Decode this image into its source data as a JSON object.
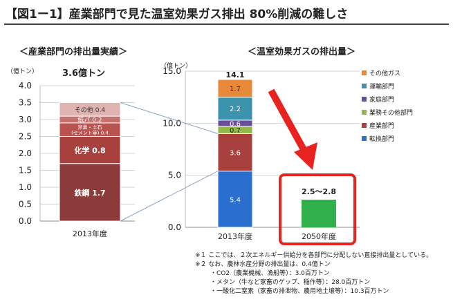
{
  "title": "【図1ー1】産業部門で見た温室効果ガス排出 80%削減の難しさ",
  "left": {
    "subtitle": "＜産業部門の排出量実績＞",
    "unit": "（億トン）",
    "total_label": "3.6億トン"
  },
  "right": {
    "subtitle": "＜温室効果ガスの排出量＞",
    "unit": "（億トン）"
  },
  "notes": [
    "※１ ここでは、２次エネルギー供給分を各部門に分配しない直接排出量としている。",
    "※２ なお、農林水産分野の排出量は、0.4億トン",
    "・CO2（農業機械、漁船等）：3.0百万トン",
    "・メタン（牛など家畜のゲップ、稲作等）：28.0百万トン",
    "・一酸化二窒素（家畜の排泄物、農用地土壌等）：10.3百万トン"
  ],
  "colors": {
    "steel": "#8c3b3a",
    "chemistry": "#a8403e",
    "ceramics": "#b85350",
    "paper": "#c4706c",
    "other_left": "#deb3b0",
    "energy": "#2a6fd0",
    "industry": "#a8403e",
    "business": "#93b84a",
    "household": "#6a4c9c",
    "transport": "#3b93ad",
    "other_gas": "#e8893a",
    "target": "#2fb04a",
    "highlight": "#e8231f",
    "connector": "#8da3c4"
  },
  "chart_data": [
    {
      "type": "bar",
      "stacked": true,
      "categories": [
        "2013年度"
      ],
      "ylim": [
        0,
        4.0
      ],
      "yticks": [
        "0.0",
        "0.5",
        "1.0",
        "1.5",
        "2.0",
        "2.5",
        "3.0",
        "3.5",
        "4.0"
      ],
      "ylabel": "（億トン）",
      "title": "＜産業部門の排出量実績＞",
      "series": [
        {
          "name": "鉄鋼",
          "label": "鉄鋼 1.7",
          "values": [
            1.7
          ],
          "color_key": "steel"
        },
        {
          "name": "化学",
          "label": "化学 0.8",
          "values": [
            0.8
          ],
          "color_key": "chemistry"
        },
        {
          "name": "窯業・土石(セメント等)",
          "label_lines": [
            "窯業・土石",
            "(セメント等) 0.4"
          ],
          "values": [
            0.4
          ],
          "color_key": "ceramics"
        },
        {
          "name": "紙パ",
          "label": "紙パ 0.2",
          "values": [
            0.2
          ],
          "color_key": "paper"
        },
        {
          "name": "その他",
          "label": "その他 0.4",
          "values": [
            0.4
          ],
          "color_key": "other_left"
        }
      ]
    },
    {
      "type": "bar",
      "stacked": true,
      "categories": [
        "2013年度",
        "2050年度"
      ],
      "ylim": [
        0,
        15.0
      ],
      "yticks": [
        "0.0",
        "5.0",
        "10.0",
        "15.0"
      ],
      "ylabel": "（億トン）",
      "title": "＜温室効果ガスの排出量＞",
      "legend_position": "right",
      "series": [
        {
          "name": "転換部門",
          "values": [
            5.4,
            null
          ],
          "label": "5.4",
          "color_key": "energy"
        },
        {
          "name": "産業部門",
          "values": [
            3.6,
            null
          ],
          "label": "3.6",
          "color_key": "industry"
        },
        {
          "name": "業務その他部門",
          "values": [
            0.7,
            null
          ],
          "label": "0.7",
          "color_key": "business"
        },
        {
          "name": "家庭部門",
          "values": [
            0.6,
            null
          ],
          "label": "0.6",
          "color_key": "household"
        },
        {
          "name": "運輸部門",
          "values": [
            2.2,
            null
          ],
          "label": "2.2",
          "color_key": "transport"
        },
        {
          "name": "その他ガス",
          "values": [
            1.7,
            null
          ],
          "label": "1.7",
          "color_key": "other_gas"
        },
        {
          "name": "",
          "values": [
            null,
            2.65
          ],
          "label": "",
          "color_key": "target"
        }
      ],
      "totals": [
        "14.1",
        "2.5～2.8"
      ],
      "legend_order": [
        "その他ガス",
        "運輸部門",
        "家庭部門",
        "業務その他部門",
        "産業部門",
        "転換部門"
      ]
    }
  ]
}
